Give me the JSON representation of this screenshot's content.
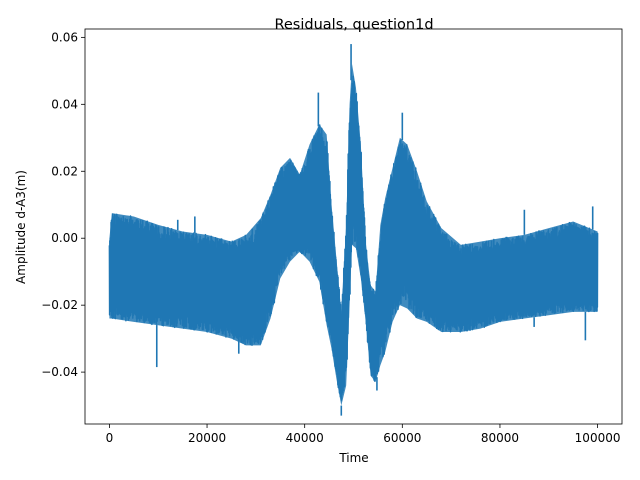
{
  "chart_data": {
    "type": "line",
    "title": "Residuals, question1d",
    "xlabel": "Time",
    "ylabel": "Amplitude d-A3(m)",
    "xlim": [
      -5000,
      105000
    ],
    "ylim": [
      -0.0555,
      0.0625
    ],
    "xticks": [
      0,
      20000,
      40000,
      60000,
      80000,
      100000
    ],
    "xtick_labels": [
      "0",
      "20000",
      "40000",
      "60000",
      "80000",
      "100000"
    ],
    "yticks": [
      -0.04,
      -0.02,
      0.0,
      0.02,
      0.04,
      0.06
    ],
    "ytick_labels": [
      "−0.04",
      "−0.02",
      "0.00",
      "0.02",
      "0.04",
      "0.06"
    ],
    "grid": false,
    "legend": "none",
    "series": [
      {
        "color": "#1f77b4",
        "envelope": {
          "x": [
            0,
            500,
            5000,
            10000,
            15000,
            20000,
            25000,
            28000,
            31000,
            33000,
            35000,
            37000,
            39000,
            41000,
            43000,
            44500,
            45500,
            46500,
            47500,
            48500,
            49200,
            49700,
            50500,
            51500,
            52500,
            53500,
            54500,
            55500,
            56500,
            58000,
            59500,
            61000,
            63000,
            65000,
            68000,
            72000,
            76000,
            80000,
            85000,
            90000,
            95000,
            100000
          ],
          "upper": [
            0.0,
            0.0075,
            0.0065,
            0.004,
            0.002,
            0.001,
            -0.001,
            0.001,
            0.006,
            0.013,
            0.021,
            0.024,
            0.019,
            0.028,
            0.034,
            0.031,
            0.01,
            -0.006,
            -0.022,
            0.004,
            0.04,
            0.052,
            0.045,
            0.028,
            -0.001,
            -0.014,
            -0.016,
            0.004,
            0.012,
            0.021,
            0.03,
            0.028,
            0.02,
            0.011,
            0.003,
            -0.002,
            -0.001,
            0.0,
            0.001,
            0.003,
            0.005,
            0.002
          ],
          "lower": [
            -0.024,
            -0.024,
            -0.025,
            -0.026,
            -0.027,
            -0.028,
            -0.03,
            -0.032,
            -0.032,
            -0.024,
            -0.012,
            -0.007,
            -0.004,
            -0.007,
            -0.013,
            -0.026,
            -0.033,
            -0.042,
            -0.05,
            -0.044,
            -0.02,
            -0.002,
            -0.003,
            -0.012,
            -0.025,
            -0.041,
            -0.043,
            -0.038,
            -0.034,
            -0.025,
            -0.02,
            -0.021,
            -0.024,
            -0.025,
            -0.028,
            -0.028,
            -0.027,
            -0.025,
            -0.024,
            -0.023,
            -0.022,
            -0.022
          ]
        },
        "spikes": [
          {
            "x": 9700,
            "y": -0.0385
          },
          {
            "x": 14000,
            "y": 0.0055
          },
          {
            "x": 17500,
            "y": 0.0065
          },
          {
            "x": 26500,
            "y": -0.0345
          },
          {
            "x": 42800,
            "y": 0.0435
          },
          {
            "x": 49500,
            "y": 0.058
          },
          {
            "x": 47500,
            "y": -0.053
          },
          {
            "x": 54800,
            "y": -0.0455
          },
          {
            "x": 60000,
            "y": 0.0375
          },
          {
            "x": 85000,
            "y": 0.0085
          },
          {
            "x": 87000,
            "y": -0.0265
          },
          {
            "x": 97500,
            "y": -0.0305
          },
          {
            "x": 99000,
            "y": 0.0095
          }
        ]
      }
    ]
  }
}
